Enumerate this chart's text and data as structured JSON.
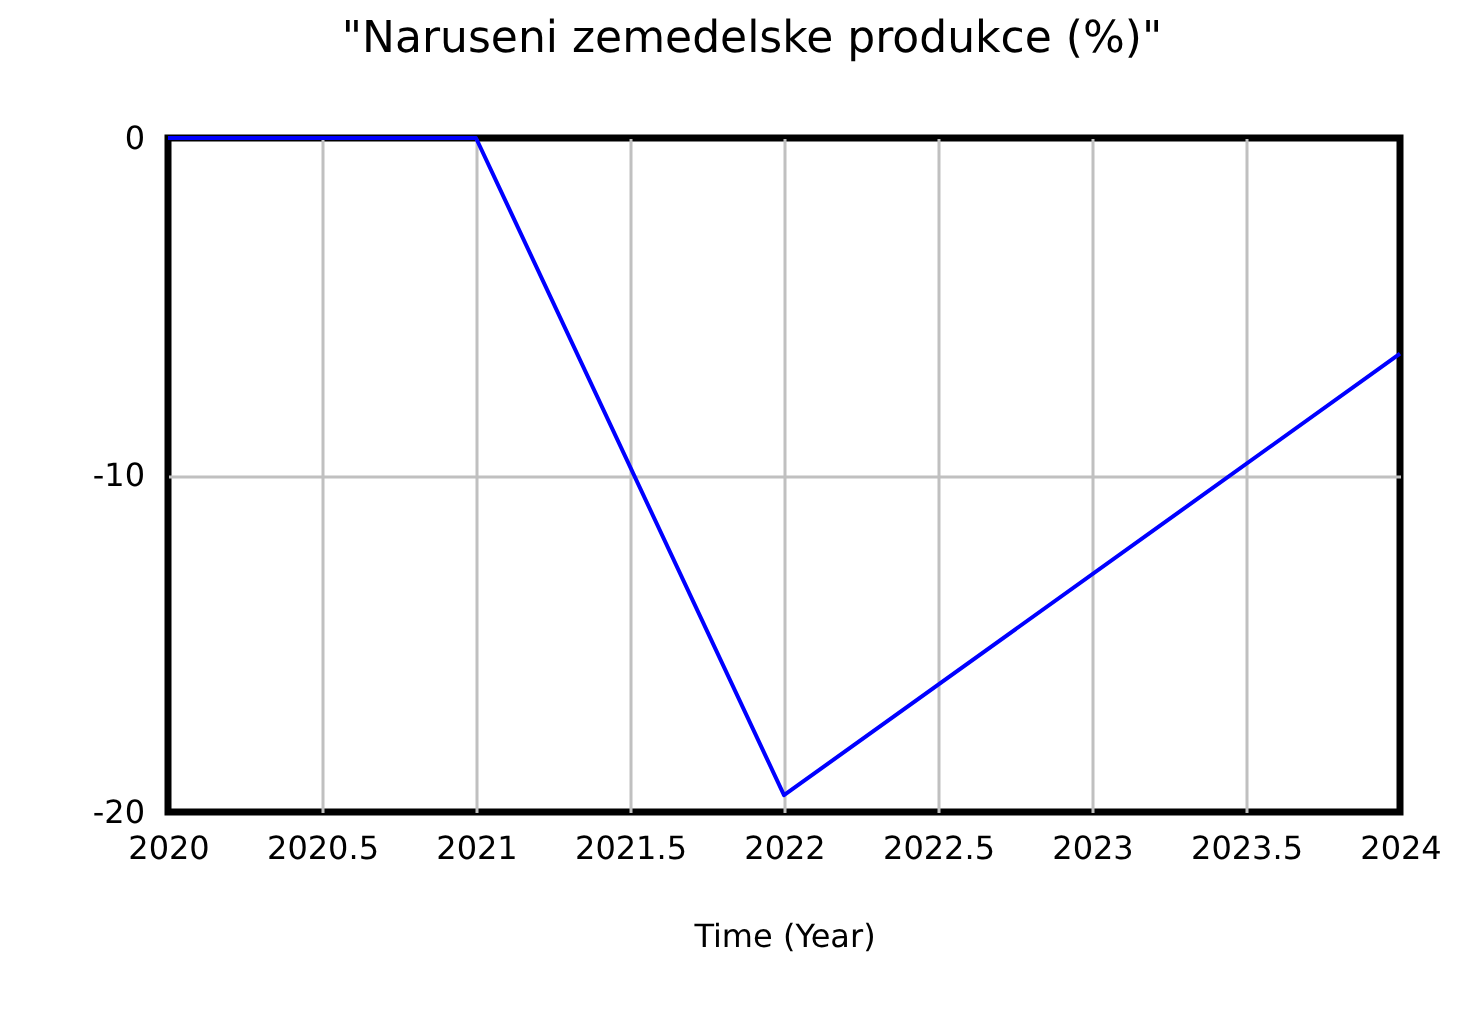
{
  "chart_data": {
    "type": "line",
    "title": "\"Naruseni zemedelske produkce (%)\"",
    "xlabel": "Time (Year)",
    "x": [
      2020,
      2021,
      2022,
      2024
    ],
    "series": [
      {
        "color": "#0000ff",
        "values": [
          0,
          0,
          -19.5,
          -6.4
        ]
      }
    ],
    "xlim": [
      2020,
      2024
    ],
    "xticks": [
      2020,
      2020.5,
      2021,
      2021.5,
      2022,
      2022.5,
      2023,
      2023.5,
      2024
    ],
    "ylim": [
      -20,
      0
    ],
    "yticks": [
      -20,
      -10,
      0
    ],
    "grid": true,
    "line_style": "solid"
  }
}
